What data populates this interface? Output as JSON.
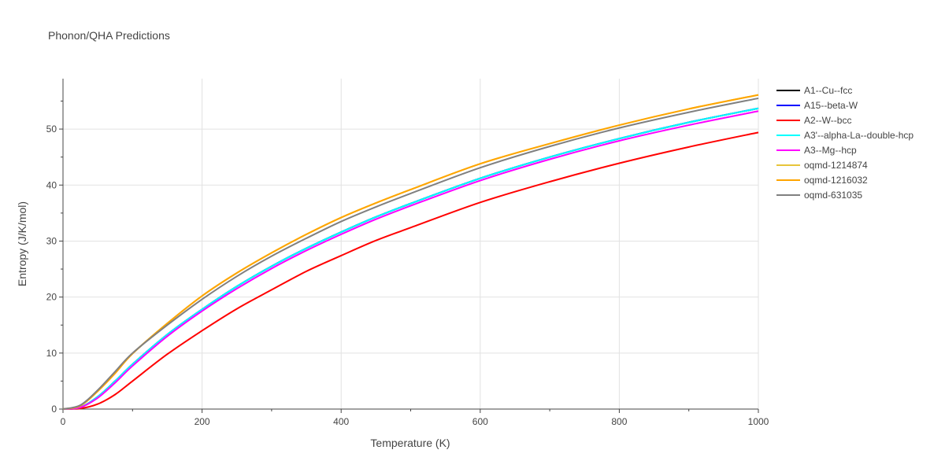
{
  "chart_data": {
    "type": "line",
    "title": "Phonon/QHA Predictions",
    "xlabel": "Temperature (K)",
    "ylabel": "Entropy (J/K/mol)",
    "xlim": [
      0,
      1000
    ],
    "ylim": [
      0,
      59
    ],
    "x_ticks": [
      0,
      200,
      400,
      600,
      800,
      1000
    ],
    "y_ticks": [
      0,
      10,
      20,
      30,
      40,
      50
    ],
    "grid": true,
    "legend_position": "right",
    "x": [
      0,
      25,
      50,
      75,
      100,
      150,
      200,
      250,
      300,
      350,
      400,
      450,
      500,
      600,
      700,
      800,
      900,
      1000
    ],
    "series": [
      {
        "name": "A1--Cu--fcc",
        "color": "#000000",
        "values": [
          0,
          0.3,
          2.2,
          5.0,
          8.0,
          13.3,
          17.8,
          21.9,
          25.5,
          28.7,
          31.6,
          34.3,
          36.7,
          41.2,
          45.0,
          48.3,
          51.2,
          53.7
        ]
      },
      {
        "name": "A15--beta-W",
        "color": "#0000ff",
        "values": [
          0,
          0.3,
          2.2,
          5.0,
          8.0,
          13.3,
          17.8,
          21.9,
          25.5,
          28.7,
          31.6,
          34.3,
          36.7,
          41.2,
          45.0,
          48.3,
          51.2,
          53.7
        ]
      },
      {
        "name": "A2--W--bcc",
        "color": "#ff0000",
        "values": [
          0,
          0.1,
          0.9,
          2.6,
          5.0,
          9.8,
          14.0,
          17.9,
          21.3,
          24.6,
          27.4,
          30.1,
          32.4,
          36.9,
          40.6,
          43.9,
          46.8,
          49.4
        ]
      },
      {
        "name": "A3'--alpha-La--double-hcp",
        "color": "#00ffff",
        "values": [
          0,
          0.3,
          2.2,
          5.0,
          8.0,
          13.3,
          17.8,
          21.9,
          25.5,
          28.7,
          31.6,
          34.3,
          36.7,
          41.2,
          45.0,
          48.3,
          51.2,
          53.7
        ]
      },
      {
        "name": "A3--Mg--hcp",
        "color": "#ff00ff",
        "values": [
          0,
          0.3,
          2.0,
          4.7,
          7.7,
          13.0,
          17.5,
          21.5,
          25.1,
          28.3,
          31.2,
          33.9,
          36.3,
          40.8,
          44.6,
          47.9,
          50.7,
          53.2
        ]
      },
      {
        "name": "oqmd-1214874",
        "color": "#e7c53a",
        "values": [
          0,
          0.6,
          3.2,
          6.4,
          9.9,
          15.3,
          20.2,
          24.3,
          27.9,
          31.2,
          34.2,
          36.8,
          39.2,
          43.8,
          47.4,
          50.7,
          53.6,
          56.1
        ]
      },
      {
        "name": "oqmd-1216032",
        "color": "#ffa500",
        "values": [
          0,
          0.6,
          3.2,
          6.4,
          9.9,
          15.3,
          20.2,
          24.3,
          27.9,
          31.2,
          34.2,
          36.8,
          39.2,
          43.8,
          47.4,
          50.7,
          53.6,
          56.1
        ]
      },
      {
        "name": "oqmd-631035",
        "color": "#808080",
        "values": [
          0,
          0.7,
          3.4,
          6.7,
          10.0,
          15.0,
          19.6,
          23.7,
          27.3,
          30.5,
          33.5,
          36.1,
          38.5,
          43.1,
          46.9,
          50.2,
          53.0,
          55.5
        ]
      }
    ]
  }
}
